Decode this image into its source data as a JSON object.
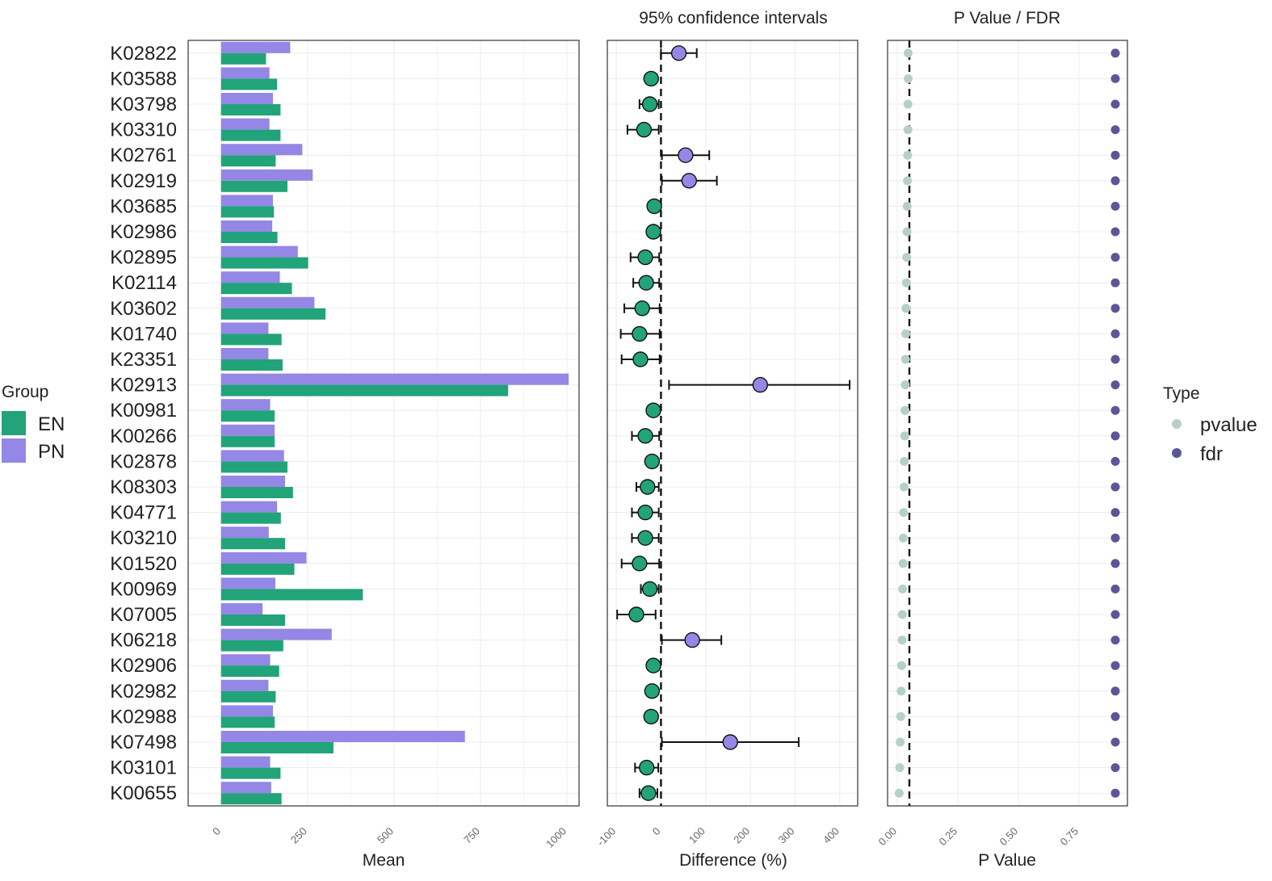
{
  "colors": {
    "EN": "#22a37a",
    "PN": "#9487e6",
    "pvalue": "#b7d0c6",
    "fdr": "#5b5797",
    "panel_border": "#333333",
    "grid": "#ececec"
  },
  "chart_data": [
    {
      "type": "bar",
      "orientation": "horizontal",
      "xlabel": "Mean",
      "xlim": [
        -95,
        1035
      ],
      "xticks": [
        0,
        250,
        500,
        750,
        1000
      ],
      "categories": [
        "K02822",
        "K03588",
        "K03798",
        "K03310",
        "K02761",
        "K02919",
        "K03685",
        "K02986",
        "K02895",
        "K02114",
        "K03602",
        "K01740",
        "K23351",
        "K02913",
        "K00981",
        "K00266",
        "K02878",
        "K08303",
        "K04771",
        "K03210",
        "K01520",
        "K00969",
        "K07005",
        "K06218",
        "K02906",
        "K02982",
        "K02988",
        "K07498",
        "K03101",
        "K00655"
      ],
      "series": [
        {
          "name": "PN",
          "values": [
            200,
            140,
            150,
            140,
            235,
            265,
            150,
            148,
            222,
            170,
            270,
            137,
            137,
            1005,
            142,
            155,
            182,
            185,
            162,
            138,
            247,
            157,
            120,
            320,
            142,
            137,
            150,
            705,
            142,
            145
          ]
        },
        {
          "name": "EN",
          "values": [
            130,
            162,
            172,
            172,
            158,
            192,
            153,
            163,
            252,
            205,
            302,
            175,
            178,
            830,
            155,
            155,
            192,
            208,
            173,
            185,
            212,
            410,
            185,
            180,
            168,
            158,
            155,
            325,
            172,
            175
          ]
        }
      ]
    },
    {
      "type": "scatter",
      "title": "95% confidence intervals",
      "xlabel": "Difference (%)",
      "xlim": [
        -120,
        440
      ],
      "xticks": [
        -100,
        0,
        100,
        200,
        300,
        400
      ],
      "reference_line": 0,
      "categories": [
        "K02822",
        "K03588",
        "K03798",
        "K03310",
        "K02761",
        "K02919",
        "K03685",
        "K02986",
        "K02895",
        "K02114",
        "K03602",
        "K01740",
        "K23351",
        "K02913",
        "K00981",
        "K00266",
        "K02878",
        "K08303",
        "K04771",
        "K03210",
        "K01520",
        "K00969",
        "K07005",
        "K06218",
        "K02906",
        "K02982",
        "K02988",
        "K07498",
        "K03101",
        "K00655"
      ],
      "points": [
        {
          "diff": 40,
          "low": 0,
          "high": 80,
          "group": "PN"
        },
        {
          "diff": -22,
          "low": -30,
          "high": -12,
          "group": "EN"
        },
        {
          "diff": -25,
          "low": -48,
          "high": -5,
          "group": "EN"
        },
        {
          "diff": -38,
          "low": -75,
          "high": -5,
          "group": "EN"
        },
        {
          "diff": 55,
          "low": 2,
          "high": 108,
          "group": "PN"
        },
        {
          "diff": 63,
          "low": 2,
          "high": 125,
          "group": "PN"
        },
        {
          "diff": -15,
          "low": -20,
          "high": -8,
          "group": "EN"
        },
        {
          "diff": -17,
          "low": -22,
          "high": -10,
          "group": "EN"
        },
        {
          "diff": -35,
          "low": -68,
          "high": -4,
          "group": "EN"
        },
        {
          "diff": -33,
          "low": -62,
          "high": -4,
          "group": "EN"
        },
        {
          "diff": -42,
          "low": -82,
          "high": -3,
          "group": "EN"
        },
        {
          "diff": -48,
          "low": -90,
          "high": -3,
          "group": "EN"
        },
        {
          "diff": -46,
          "low": -88,
          "high": -3,
          "group": "EN"
        },
        {
          "diff": 222,
          "low": 18,
          "high": 422,
          "group": "PN"
        },
        {
          "diff": -17,
          "low": -22,
          "high": -10,
          "group": "EN"
        },
        {
          "diff": -35,
          "low": -65,
          "high": -4,
          "group": "EN"
        },
        {
          "diff": -20,
          "low": -30,
          "high": -8,
          "group": "EN"
        },
        {
          "diff": -30,
          "low": -55,
          "high": -5,
          "group": "EN"
        },
        {
          "diff": -35,
          "low": -65,
          "high": -5,
          "group": "EN"
        },
        {
          "diff": -35,
          "low": -65,
          "high": -5,
          "group": "EN"
        },
        {
          "diff": -48,
          "low": -88,
          "high": -4,
          "group": "EN"
        },
        {
          "diff": -25,
          "low": -45,
          "high": -5,
          "group": "EN"
        },
        {
          "diff": -55,
          "low": -98,
          "high": -12,
          "group": "EN"
        },
        {
          "diff": 70,
          "low": 2,
          "high": 135,
          "group": "PN"
        },
        {
          "diff": -17,
          "low": -22,
          "high": -10,
          "group": "EN"
        },
        {
          "diff": -20,
          "low": -26,
          "high": -12,
          "group": "EN"
        },
        {
          "diff": -22,
          "low": -30,
          "high": -12,
          "group": "EN"
        },
        {
          "diff": 155,
          "low": 2,
          "high": 308,
          "group": "PN"
        },
        {
          "diff": -32,
          "low": -58,
          "high": -6,
          "group": "EN"
        },
        {
          "diff": -28,
          "low": -48,
          "high": -8,
          "group": "EN"
        }
      ]
    },
    {
      "type": "scatter",
      "title": "P Value / FDR",
      "xlabel": "P Value",
      "xlim": [
        -0.04,
        0.95
      ],
      "xticks": [
        "0.00",
        "0.25",
        "0.50",
        "0.75"
      ],
      "reference_line": 0.05,
      "categories": [
        "K02822",
        "K03588",
        "K03798",
        "K03310",
        "K02761",
        "K02919",
        "K03685",
        "K02986",
        "K02895",
        "K02114",
        "K03602",
        "K01740",
        "K23351",
        "K02913",
        "K00981",
        "K00266",
        "K02878",
        "K08303",
        "K04771",
        "K03210",
        "K01520",
        "K00969",
        "K07005",
        "K06218",
        "K02906",
        "K02982",
        "K02988",
        "K07498",
        "K03101",
        "K00655"
      ],
      "pvalue": [
        0.045,
        0.045,
        0.044,
        0.044,
        0.043,
        0.042,
        0.041,
        0.04,
        0.039,
        0.038,
        0.036,
        0.035,
        0.034,
        0.033,
        0.032,
        0.031,
        0.029,
        0.028,
        0.026,
        0.025,
        0.024,
        0.022,
        0.021,
        0.02,
        0.018,
        0.016,
        0.014,
        0.012,
        0.01,
        0.008
      ],
      "fdr": [
        0.9,
        0.9,
        0.9,
        0.9,
        0.9,
        0.9,
        0.9,
        0.9,
        0.9,
        0.9,
        0.9,
        0.9,
        0.9,
        0.9,
        0.9,
        0.9,
        0.9,
        0.9,
        0.9,
        0.9,
        0.9,
        0.9,
        0.9,
        0.9,
        0.9,
        0.9,
        0.9,
        0.9,
        0.9,
        0.9
      ]
    }
  ],
  "legends": {
    "group": {
      "title": "Group",
      "items": [
        {
          "label": "EN",
          "key": "EN"
        },
        {
          "label": "PN",
          "key": "PN"
        }
      ]
    },
    "type": {
      "title": "Type",
      "items": [
        {
          "label": "pvalue",
          "key": "pvalue"
        },
        {
          "label": "fdr",
          "key": "fdr"
        }
      ]
    }
  }
}
